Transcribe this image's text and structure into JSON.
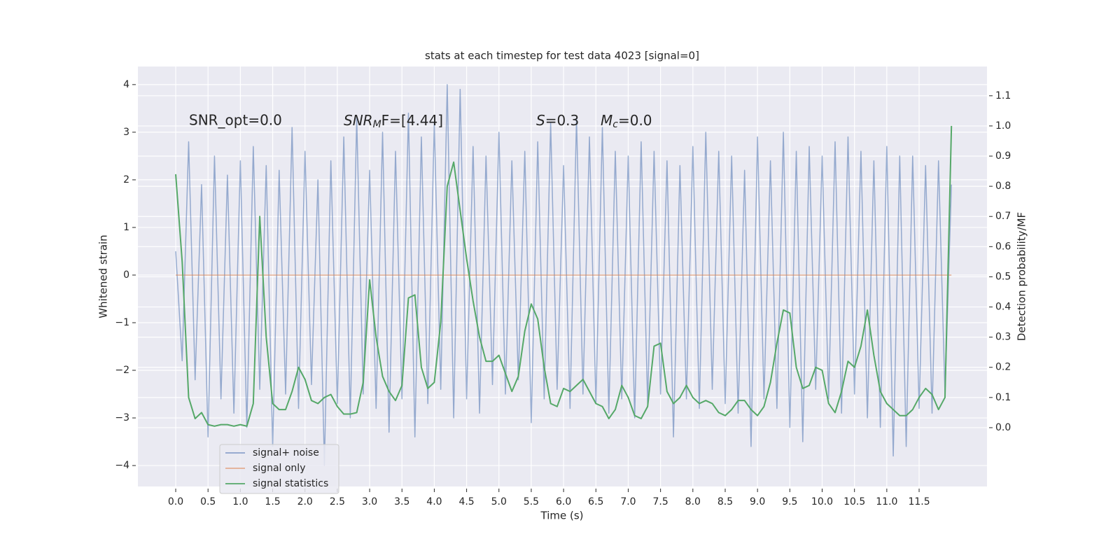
{
  "chart_data": {
    "type": "line",
    "title": "stats at each timestep for test data 4023 [signal=0]",
    "xlabel": "Time (s)",
    "ylabel": "Whitened strain",
    "y2label": "Detection probability/MF",
    "annotations": [
      {
        "text": "SNR_opt=0.0"
      },
      {
        "base": "SNR",
        "sub": "M",
        "rest": "F=[4.44]"
      },
      {
        "base": "S",
        "rest": "=0.3"
      },
      {
        "base": "M",
        "sub": "c",
        "rest": "=0.0"
      }
    ],
    "x": [
      0,
      0.1,
      0.2,
      0.3,
      0.4,
      0.5,
      0.6,
      0.7,
      0.8,
      0.9,
      1,
      1.1,
      1.2,
      1.3,
      1.4,
      1.5,
      1.6,
      1.7,
      1.8,
      1.9,
      2,
      2.1,
      2.2,
      2.3,
      2.4,
      2.5,
      2.6,
      2.7,
      2.8,
      2.9,
      3,
      3.1,
      3.2,
      3.3,
      3.4,
      3.5,
      3.6,
      3.7,
      3.8,
      3.9,
      4,
      4.1,
      4.2,
      4.3,
      4.4,
      4.5,
      4.6,
      4.7,
      4.8,
      4.9,
      5,
      5.1,
      5.2,
      5.3,
      5.4,
      5.5,
      5.6,
      5.7,
      5.8,
      5.9,
      6,
      6.1,
      6.2,
      6.3,
      6.4,
      6.5,
      6.6,
      6.7,
      6.8,
      6.9,
      7,
      7.1,
      7.2,
      7.3,
      7.4,
      7.5,
      7.6,
      7.7,
      7.8,
      7.9,
      8,
      8.1,
      8.2,
      8.3,
      8.4,
      8.5,
      8.6,
      8.7,
      8.8,
      8.9,
      9,
      9.1,
      9.2,
      9.3,
      9.4,
      9.5,
      9.6,
      9.7,
      9.8,
      9.9,
      10,
      10.1,
      10.2,
      10.3,
      10.4,
      10.5,
      10.6,
      10.7,
      10.8,
      10.9,
      11,
      11.1,
      11.2,
      11.3,
      11.4,
      11.5,
      11.6,
      11.7,
      11.8,
      11.9,
      12
    ],
    "series": [
      {
        "name": "signal+ noise",
        "color": "#4c72b0",
        "values": [
          0.5,
          -1.8,
          2.8,
          -2.2,
          1.9,
          -3.4,
          2.5,
          -2.6,
          2.1,
          -2.9,
          2.4,
          -3.2,
          2.7,
          -2.4,
          2.3,
          -3.6,
          2.2,
          -2.5,
          3.1,
          -2.8,
          2.6,
          -2.3,
          2.0,
          -4.0,
          2.4,
          -2.7,
          2.9,
          -3.0,
          3.3,
          -2.5,
          2.2,
          -2.8,
          3.0,
          -3.3,
          2.6,
          -2.6,
          3.4,
          -3.4,
          2.9,
          -2.7,
          3.2,
          -2.4,
          4.0,
          -3.0,
          3.9,
          -2.6,
          2.7,
          -2.9,
          2.5,
          -2.3,
          3.0,
          -2.5,
          2.4,
          -2.2,
          2.6,
          -3.1,
          2.8,
          -2.6,
          3.2,
          -2.4,
          2.3,
          -2.8,
          3.3,
          -2.5,
          2.9,
          -2.7,
          3.1,
          -2.9,
          2.6,
          -2.6,
          2.5,
          -3.0,
          2.8,
          -2.7,
          2.6,
          -2.5,
          2.4,
          -3.4,
          2.3,
          -2.6,
          2.7,
          -2.8,
          3.0,
          -2.4,
          2.6,
          -2.7,
          2.5,
          -2.9,
          2.2,
          -3.6,
          2.9,
          -2.6,
          2.4,
          -2.8,
          3.0,
          -3.2,
          2.6,
          -3.5,
          2.7,
          -2.4,
          2.5,
          -2.6,
          2.8,
          -2.9,
          2.9,
          -2.5,
          2.6,
          -3.0,
          2.4,
          -3.2,
          2.7,
          -3.8,
          2.5,
          -3.6,
          2.5,
          -2.8,
          2.3,
          -2.9,
          2.4,
          -2.5,
          1.9
        ]
      },
      {
        "name": "signal only",
        "color": "#dd8452",
        "values": [
          0,
          0,
          0,
          0,
          0,
          0,
          0,
          0,
          0,
          0,
          0,
          0,
          0,
          0,
          0,
          0,
          0,
          0,
          0,
          0,
          0,
          0,
          0,
          0,
          0,
          0,
          0,
          0,
          0,
          0,
          0,
          0,
          0,
          0,
          0,
          0,
          0,
          0,
          0,
          0,
          0,
          0,
          0,
          0,
          0,
          0,
          0,
          0,
          0,
          0,
          0,
          0,
          0,
          0,
          0,
          0,
          0,
          0,
          0,
          0,
          0,
          0,
          0,
          0,
          0,
          0,
          0,
          0,
          0,
          0,
          0,
          0,
          0,
          0,
          0,
          0,
          0,
          0,
          0,
          0,
          0,
          0,
          0,
          0,
          0,
          0,
          0,
          0,
          0,
          0,
          0,
          0,
          0,
          0,
          0,
          0,
          0,
          0,
          0,
          0,
          0,
          0,
          0,
          0,
          0,
          0,
          0,
          0,
          0,
          0,
          0,
          0,
          0,
          0,
          0,
          0,
          0,
          0,
          0,
          0,
          0
        ]
      },
      {
        "name": "signal statistics",
        "color": "#55a868",
        "axis": "y2",
        "values": [
          0.84,
          0.55,
          0.1,
          0.03,
          0.05,
          0.01,
          0.005,
          0.01,
          0.01,
          0.005,
          0.01,
          0.005,
          0.08,
          0.7,
          0.3,
          0.08,
          0.06,
          0.06,
          0.12,
          0.2,
          0.16,
          0.09,
          0.08,
          0.1,
          0.11,
          0.07,
          0.045,
          0.045,
          0.05,
          0.15,
          0.49,
          0.3,
          0.17,
          0.12,
          0.09,
          0.14,
          0.43,
          0.44,
          0.2,
          0.13,
          0.15,
          0.35,
          0.8,
          0.88,
          0.72,
          0.56,
          0.42,
          0.3,
          0.22,
          0.22,
          0.24,
          0.18,
          0.12,
          0.17,
          0.32,
          0.41,
          0.36,
          0.2,
          0.08,
          0.07,
          0.13,
          0.12,
          0.14,
          0.16,
          0.12,
          0.08,
          0.07,
          0.03,
          0.06,
          0.14,
          0.1,
          0.04,
          0.03,
          0.07,
          0.27,
          0.28,
          0.12,
          0.08,
          0.1,
          0.14,
          0.1,
          0.08,
          0.09,
          0.08,
          0.05,
          0.04,
          0.06,
          0.09,
          0.09,
          0.06,
          0.04,
          0.07,
          0.15,
          0.28,
          0.39,
          0.38,
          0.2,
          0.13,
          0.14,
          0.2,
          0.19,
          0.08,
          0.05,
          0.12,
          0.22,
          0.2,
          0.27,
          0.39,
          0.24,
          0.12,
          0.08,
          0.06,
          0.04,
          0.04,
          0.06,
          0.1,
          0.13,
          0.11,
          0.06,
          0.1,
          1.0
        ]
      }
    ],
    "xlim": [
      -0.585,
      12.55
    ],
    "xticks": [
      {
        "value": 0,
        "label": "0.0"
      },
      0.5,
      {
        "value": 1,
        "label": "1.0"
      },
      1.5,
      {
        "value": 2,
        "label": "2.0"
      },
      2.5,
      {
        "value": 3,
        "label": "3.0"
      },
      3.5,
      {
        "value": 4,
        "label": "4.0"
      },
      4.5,
      {
        "value": 5,
        "label": "5.0"
      },
      5.5,
      {
        "value": 6,
        "label": "6.0"
      },
      6.5,
      {
        "value": 7,
        "label": "7.0"
      },
      7.5,
      {
        "value": 8,
        "label": "8.0"
      },
      8.5,
      {
        "value": 9,
        "label": "9.0"
      },
      9.5,
      {
        "value": 10,
        "label": "10.0"
      },
      10.5,
      {
        "value": 11,
        "label": "11.0"
      },
      11.5
    ],
    "ylim": [
      -4.44,
      4.38
    ],
    "yticks": [
      {
        "value": -4,
        "label": "−4"
      },
      {
        "value": -3,
        "label": "−3"
      },
      {
        "value": -2,
        "label": "−2"
      },
      {
        "value": -1,
        "label": "−1"
      },
      0,
      1,
      2,
      3,
      4
    ],
    "y2lim": [
      -0.195,
      1.197
    ],
    "y2ticks": [
      {
        "value": 0,
        "label": "0.0"
      },
      0.1,
      0.2,
      0.3,
      0.4,
      0.5,
      0.6,
      0.7,
      0.8,
      0.9,
      {
        "value": 1,
        "label": "1.0"
      },
      1.1
    ],
    "grid": true,
    "legend": "lower left"
  }
}
